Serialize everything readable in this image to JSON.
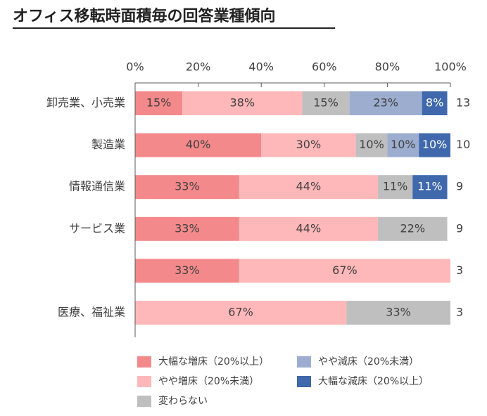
{
  "chart_data": {
    "type": "stacked_barh",
    "title": "オフィス移転時面積毎の回答業種傾向",
    "categories": [
      "卸売業、小売業",
      "製造業",
      "情報通信業",
      "サービス業",
      null,
      "医療、福祉業"
    ],
    "counts": [
      13,
      10,
      9,
      9,
      3,
      3
    ],
    "xlim": [
      0,
      100
    ],
    "xticks": [
      {
        "value": 0,
        "label": "0%"
      },
      {
        "value": 20,
        "label": "20%"
      },
      {
        "value": 40,
        "label": "40%"
      },
      {
        "value": 60,
        "label": "60%"
      },
      {
        "value": 80,
        "label": "80%"
      },
      {
        "value": 100,
        "label": "100%"
      }
    ],
    "series": [
      {
        "name": "大幅な増床（20%以上）",
        "color": "#f4898b",
        "values": [
          15,
          40,
          33,
          33,
          33,
          null
        ],
        "value_labels": [
          "15%",
          "40%",
          "33%",
          "33%",
          "33%",
          null
        ]
      },
      {
        "name": "やや増床（20%未満）",
        "color": "#ffb8b9",
        "values": [
          38,
          30,
          44,
          44,
          67,
          67
        ],
        "value_labels": [
          "38%",
          "30%",
          "44%",
          "44%",
          "67%",
          "67%"
        ]
      },
      {
        "name": "変わらない",
        "color": "#bfbfbf",
        "values": [
          15,
          10,
          11,
          22,
          null,
          33
        ],
        "value_labels": [
          "15%",
          "10%",
          "11%",
          "22%",
          null,
          "33%"
        ]
      },
      {
        "name": "やや減床（20%未満）",
        "color": "#9cadd0",
        "values": [
          23,
          10,
          null,
          null,
          null,
          null
        ],
        "value_labels": [
          "23%",
          "10%",
          null,
          null,
          null,
          null
        ]
      },
      {
        "name": "大幅な減床（20%以上）",
        "color": "#3f68ad",
        "values": [
          8,
          10,
          11,
          null,
          null,
          null
        ],
        "value_labels": [
          "8%",
          "10%",
          "11%",
          null,
          null,
          null
        ]
      }
    ]
  }
}
